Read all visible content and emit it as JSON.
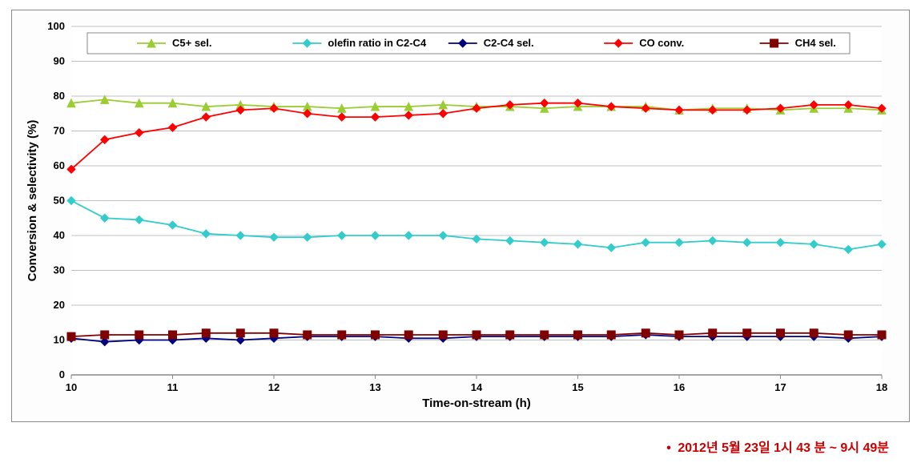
{
  "chart": {
    "type": "line",
    "xlabel": "Time-on-stream (h)",
    "ylabel": "Conversion & selectivity (%)",
    "xlim": [
      10,
      18
    ],
    "ylim": [
      0,
      100
    ],
    "xtick_step": 1,
    "ytick_step": 10,
    "plot_bg": "#ffffff",
    "panel_border": "#8a8a8a",
    "grid_color": "#c0c0c0",
    "grid_on_y": true,
    "grid_on_x": false,
    "xaxis_color": "#888888",
    "axis_title_fontsize": 15,
    "tick_fontsize": 13,
    "line_width": 1.8,
    "marker_size": 5,
    "x_values": [
      10,
      10.33,
      10.67,
      11,
      11.33,
      11.67,
      12,
      12.33,
      12.67,
      13,
      13.33,
      13.67,
      14,
      14.33,
      14.67,
      15,
      15.33,
      15.67,
      16,
      16.33,
      16.67,
      17,
      17.33,
      17.67,
      18
    ],
    "legend": {
      "border_color": "#888888",
      "bg": "#ffffff",
      "fontsize": 13,
      "font_weight": 700
    },
    "series": [
      {
        "key": "c5_sel",
        "label": "C5+ sel.",
        "color": "#9acd32",
        "marker": "triangle",
        "y": [
          78,
          79,
          78,
          78,
          77,
          77.5,
          77,
          77,
          76.5,
          77,
          77,
          77.5,
          77,
          77,
          76.5,
          77,
          77,
          77,
          76,
          76.5,
          76.5,
          76,
          76.5,
          76.5,
          76
        ]
      },
      {
        "key": "olefin_ratio",
        "label": "olefin ratio in C2-C4",
        "color": "#33cccc",
        "marker": "diamond",
        "y": [
          50,
          45,
          44.5,
          43,
          40.5,
          40,
          39.5,
          39.5,
          40,
          40,
          40,
          40,
          39,
          38.5,
          38,
          37.5,
          36.5,
          38,
          38,
          38.5,
          38,
          38,
          37.5,
          36,
          37.5
        ]
      },
      {
        "key": "c2c4_sel",
        "label": "C2-C4 sel.",
        "color": "#000080",
        "marker": "diamond",
        "y": [
          10.5,
          9.5,
          10,
          10,
          10.5,
          10,
          10.5,
          11,
          11,
          11,
          10.5,
          10.5,
          11,
          11,
          11,
          11,
          11,
          11.5,
          11,
          11,
          11,
          11,
          11,
          10.5,
          11
        ]
      },
      {
        "key": "co_conv",
        "label": "CO conv.",
        "color": "#ff0000",
        "marker": "diamond",
        "y": [
          59,
          67.5,
          69.5,
          71,
          74,
          76,
          76.5,
          75,
          74,
          74,
          74.5,
          75,
          76.5,
          77.5,
          78,
          78,
          77,
          76.5,
          76,
          76,
          76,
          76.5,
          77.5,
          77.5,
          76.5
        ]
      },
      {
        "key": "ch4_sel",
        "label": "CH4 sel.",
        "color": "#800000",
        "marker": "square",
        "y": [
          11,
          11.5,
          11.5,
          11.5,
          12,
          12,
          12,
          11.5,
          11.5,
          11.5,
          11.5,
          11.5,
          11.5,
          11.5,
          11.5,
          11.5,
          11.5,
          12,
          11.5,
          12,
          12,
          12,
          12,
          11.5,
          11.5
        ]
      }
    ]
  },
  "footnote": {
    "bullet": "•",
    "text": "2012년 5월 23일 1시 43 분 ~ 9시 49분",
    "color": "#cc0000",
    "fontsize": 16,
    "font_weight": 700
  }
}
